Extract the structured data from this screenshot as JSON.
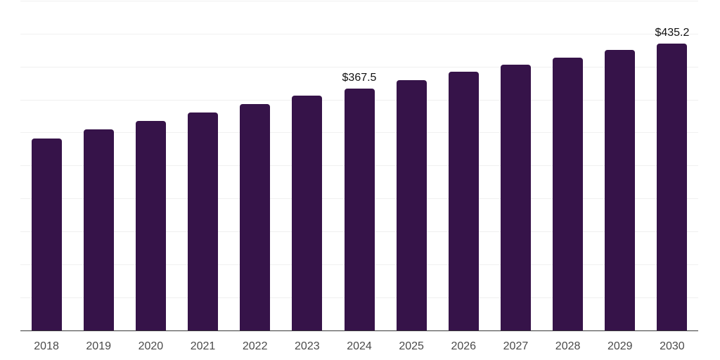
{
  "chart_data": {
    "type": "bar",
    "title": "",
    "xlabel": "",
    "ylabel": "",
    "categories": [
      "2018",
      "2019",
      "2020",
      "2021",
      "2022",
      "2023",
      "2024",
      "2025",
      "2026",
      "2027",
      "2028",
      "2029",
      "2030"
    ],
    "values": [
      291.4,
      304.9,
      317.7,
      330.5,
      343.3,
      356.5,
      367.5,
      379.9,
      392.4,
      403.7,
      414.4,
      425.8,
      435.2
    ],
    "value_prefix": "$",
    "annotations": [
      {
        "index": 6,
        "category": "2024",
        "text": "$367.5"
      },
      {
        "index": 12,
        "category": "2030",
        "text": "$435.2"
      }
    ],
    "ylim": [
      0,
      500
    ],
    "gridline_step": 50,
    "grid": true,
    "legend_position": "none"
  },
  "colors": {
    "bar": "#361349",
    "axis_line": "#3a3a3a",
    "gridline": "#f0f0f0",
    "tick_label": "#4a4a4a",
    "value_label": "#111111",
    "background": "#ffffff"
  }
}
